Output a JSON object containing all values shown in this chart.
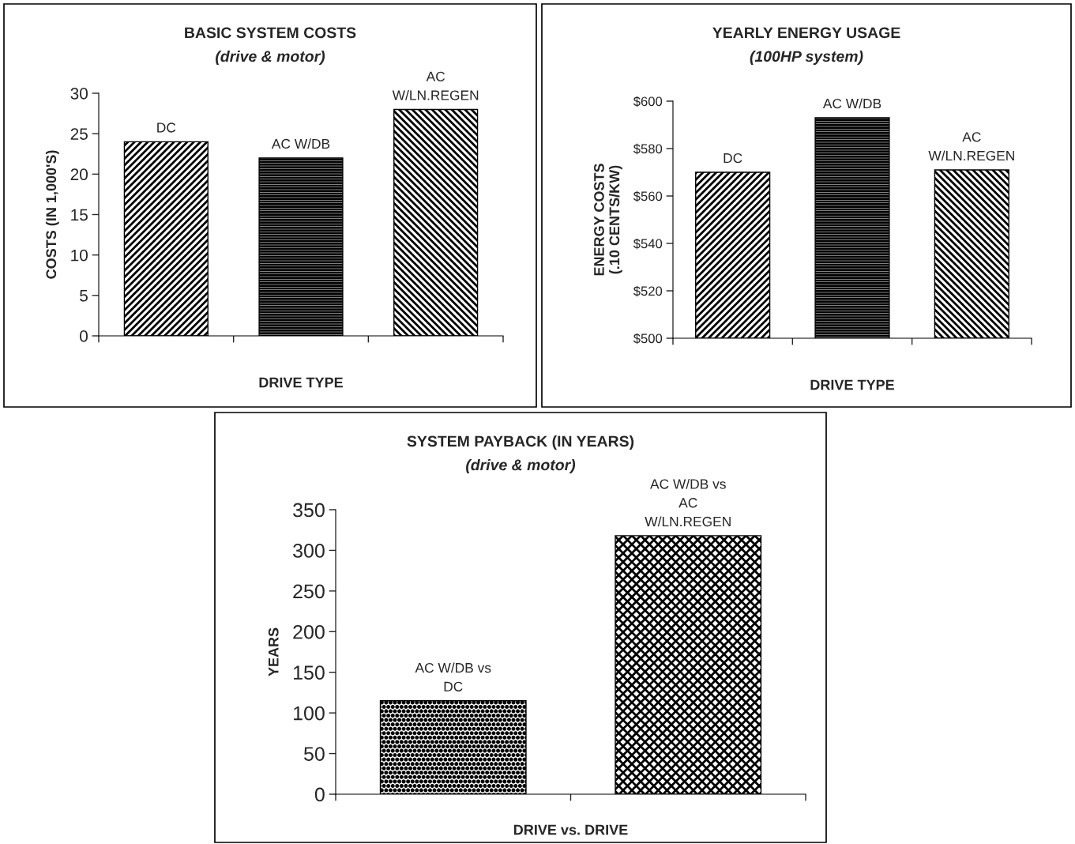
{
  "chart_data": [
    {
      "type": "bar",
      "title": "BASIC SYSTEM COSTS",
      "subtitle": "(drive & motor)",
      "xlabel": "DRIVE TYPE",
      "ylabel": "COSTS (IN 1,000'S)",
      "categories": [
        null,
        null,
        null
      ],
      "values": [
        24,
        22,
        28
      ],
      "value_labels": [
        "DC",
        "AC W/DB",
        "AC\nW/LN.REGEN"
      ],
      "colors": [
        "#000000",
        "#000000",
        "#000000"
      ],
      "ylim": [
        0,
        30
      ],
      "yticks": [
        0,
        5,
        10,
        15,
        20,
        25,
        30
      ],
      "grid": false,
      "legend": false
    },
    {
      "type": "bar",
      "title": "YEARLY ENERGY USAGE",
      "subtitle": "(100HP system)",
      "xlabel": "DRIVE TYPE",
      "ylabel": "ENERGY COSTS\n(.10 CENTS/KW)",
      "categories": [
        null,
        null,
        null
      ],
      "values": [
        570,
        593,
        571
      ],
      "value_labels": [
        "DC",
        "AC W/DB",
        "AC\nW/LN.REGEN"
      ],
      "colors": [
        "#000000",
        "#000000",
        "#000000"
      ],
      "ylim": [
        500,
        600
      ],
      "yticks": [
        {
          "value": 500,
          "label": "$500"
        },
        {
          "value": 520,
          "label": "$520"
        },
        {
          "value": 540,
          "label": "$540"
        },
        {
          "value": 560,
          "label": "$560"
        },
        {
          "value": 580,
          "label": "$580"
        },
        {
          "value": 600,
          "label": "$600"
        }
      ],
      "grid": false,
      "legend": false
    },
    {
      "type": "bar",
      "title": "SYSTEM PAYBACK (IN YEARS)",
      "subtitle": "(drive & motor)",
      "xlabel": "DRIVE vs. DRIVE",
      "ylabel": "YEARS",
      "categories": [
        null,
        null
      ],
      "values": [
        115,
        318
      ],
      "value_labels": [
        "AC W/DB vs\nDC",
        "AC W/DB vs\nAC\nW/LN.REGEN"
      ],
      "colors": [
        "#000000",
        "#000000"
      ],
      "ylim": [
        0,
        350
      ],
      "yticks": [
        0,
        50,
        100,
        150,
        200,
        250,
        300,
        350
      ],
      "grid": false,
      "legend": false
    }
  ]
}
